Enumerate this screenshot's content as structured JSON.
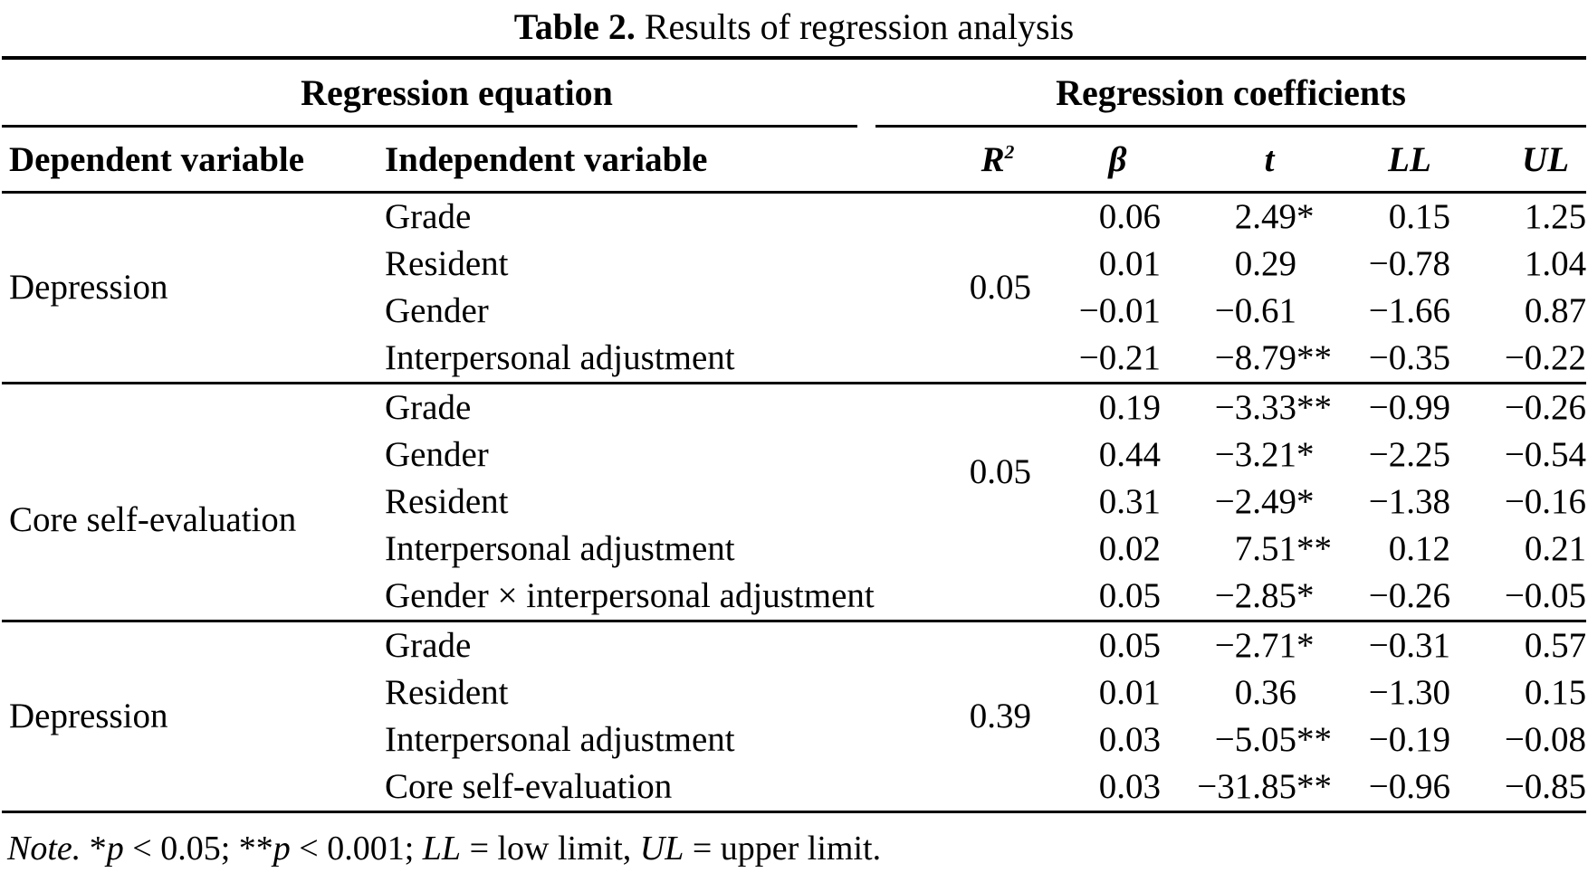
{
  "title": {
    "label": "Table 2.",
    "text": "Results of regression analysis"
  },
  "table": {
    "group_headers": {
      "left": "Regression equation",
      "right": "Regression coefficients"
    },
    "columns": {
      "dependent": "Dependent variable",
      "independent": "Independent variable",
      "r2_base": "R",
      "r2_sup": "2",
      "beta": "β",
      "t": "t",
      "ll": "LL",
      "ul": "UL"
    },
    "blocks": [
      {
        "dependent": "Depression",
        "r2": "0.05",
        "rows": [
          {
            "independent": "Grade",
            "beta": "0.06",
            "t": "2.49",
            "t_mark": "*",
            "ll": "0.15",
            "ul": "1.25"
          },
          {
            "independent": "Resident",
            "beta": "0.01",
            "t": "0.29",
            "t_mark": "",
            "ll": "−0.78",
            "ul": "1.04"
          },
          {
            "independent": "Gender",
            "beta": "−0.01",
            "t": "−0.61",
            "t_mark": "",
            "ll": "−1.66",
            "ul": "0.87"
          },
          {
            "independent": "Interpersonal adjustment",
            "beta": "−0.21",
            "t": "−8.79",
            "t_mark": "**",
            "ll": "−0.35",
            "ul": "−0.22"
          }
        ]
      },
      {
        "dependent": "Core self-evaluation",
        "r2": "0.05",
        "rows": [
          {
            "independent": "Grade",
            "beta": "0.19",
            "t": "−3.33",
            "t_mark": "**",
            "ll": "−0.99",
            "ul": "−0.26"
          },
          {
            "independent": "Gender",
            "beta": "0.44",
            "t": "−3.21",
            "t_mark": "*",
            "ll": "−2.25",
            "ul": "−0.54"
          },
          {
            "independent": "Resident",
            "beta": "0.31",
            "t": "−2.49",
            "t_mark": "*",
            "ll": "−1.38",
            "ul": "−0.16"
          },
          {
            "independent": "Interpersonal adjustment",
            "beta": "0.02",
            "t": "7.51",
            "t_mark": "**",
            "ll": "0.12",
            "ul": "0.21"
          },
          {
            "independent": "Gender × interpersonal adjustment",
            "beta": "0.05",
            "t": "−2.85",
            "t_mark": "*",
            "ll": "−0.26",
            "ul": "−0.05"
          }
        ]
      },
      {
        "dependent": "Depression",
        "r2": "0.39",
        "rows": [
          {
            "independent": "Grade",
            "beta": "0.05",
            "t": "−2.71",
            "t_mark": "*",
            "ll": "−0.31",
            "ul": "0.57"
          },
          {
            "independent": "Resident",
            "beta": "0.01",
            "t": "0.36",
            "t_mark": "",
            "ll": "−1.30",
            "ul": "0.15"
          },
          {
            "independent": "Interpersonal adjustment",
            "beta": "0.03",
            "t": "−5.05",
            "t_mark": "**",
            "ll": "−0.19",
            "ul": "−0.08"
          },
          {
            "independent": "Core self-evaluation",
            "beta": "0.03",
            "t": "−31.85",
            "t_mark": "**",
            "ll": "−0.96",
            "ul": "−0.85"
          }
        ]
      }
    ]
  },
  "note": {
    "label": "Note.",
    "s1": " *",
    "p1": "p",
    "s2": " < 0.05; **",
    "p2": "p",
    "s3": " < 0.001; ",
    "ll": "LL",
    "s4": " = low limit, ",
    "ul": "UL",
    "s5": " = upper limit."
  }
}
